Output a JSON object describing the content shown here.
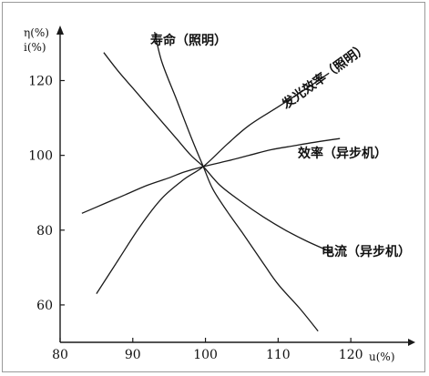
{
  "chart_data": {
    "type": "line",
    "title": "",
    "xlabel": "u(%)",
    "ylabel_lines": [
      "η(%)",
      "i(%)"
    ],
    "xlim": [
      80,
      127
    ],
    "ylim": [
      50,
      134
    ],
    "xticks": [
      80,
      90,
      100,
      110,
      120
    ],
    "yticks": [
      60,
      80,
      100,
      120
    ],
    "grid": false,
    "series": [
      {
        "name": "寿命（照明）",
        "x": [
          93,
          94,
          96,
          98,
          99.7,
          101,
          103,
          105,
          108,
          110,
          113,
          115.5
        ],
        "y": [
          133,
          125,
          115,
          105,
          97,
          91,
          85,
          79.5,
          71,
          65.5,
          59,
          53
        ]
      },
      {
        "name": "发光效率（照明）",
        "x": [
          85,
          88,
          91,
          94,
          97,
          99.7,
          103,
          106,
          110,
          114,
          117
        ],
        "y": [
          63,
          72,
          81,
          88.5,
          93.5,
          97,
          103,
          108,
          113,
          118,
          122
        ]
      },
      {
        "name": "效率（异步机）",
        "x": [
          83,
          86,
          89,
          92,
          95,
          97,
          99.7,
          103,
          106,
          109,
          112,
          115,
          118.5
        ],
        "y": [
          84.5,
          87,
          89.5,
          92,
          94,
          95.5,
          97,
          98.5,
          100,
          101.5,
          102.5,
          103.5,
          104.5
        ]
      },
      {
        "name": "电流（异步机）",
        "x": [
          86,
          88,
          90,
          92,
          94,
          96,
          98,
          99.7,
          102,
          105,
          108,
          111,
          114,
          117.5
        ],
        "y": [
          127.5,
          122.5,
          118,
          113.5,
          109,
          104.5,
          100,
          97,
          92,
          87.5,
          83.5,
          80,
          77,
          74
        ]
      }
    ]
  }
}
